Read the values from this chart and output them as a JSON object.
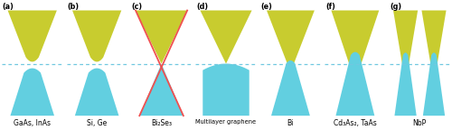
{
  "yellow": "#c8cc2f",
  "cyan": "#62cfe0",
  "red_line": "#f05050",
  "dashed_color": "#70c8e0",
  "bg_color": "#ffffff",
  "panels": [
    "a",
    "b",
    "c",
    "d",
    "e",
    "f",
    "g"
  ],
  "labels": [
    "GaAs, InAs",
    "Si, Ge",
    "Bi₂Se₃",
    "Multilayer graphene",
    "Bi",
    "Cd₃As₂, TaAs",
    "NbP"
  ],
  "figsize": [
    5.0,
    1.44
  ],
  "dpi": 100
}
